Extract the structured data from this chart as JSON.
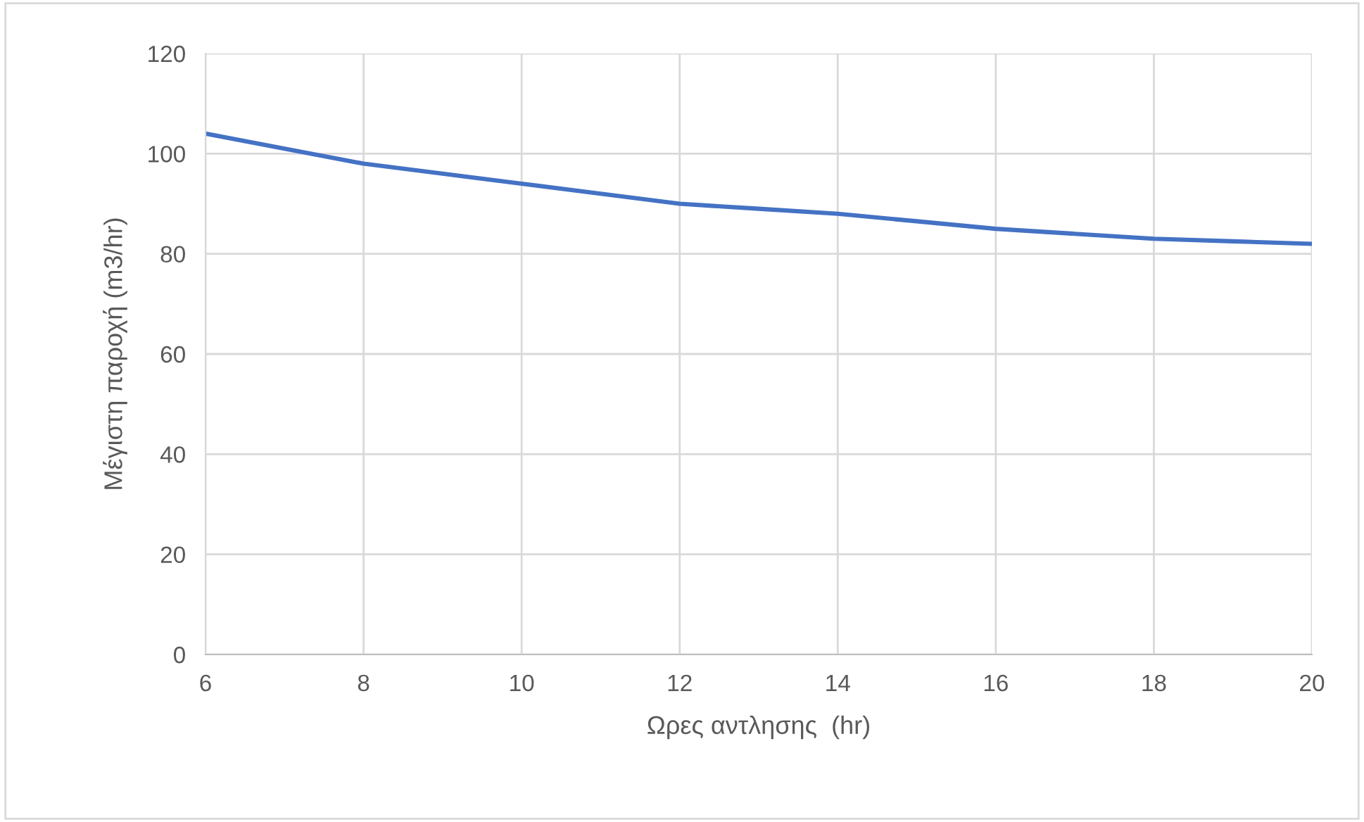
{
  "chart_data": {
    "type": "line",
    "xlabel": "Ωρες αντλησης  (hr)",
    "ylabel": "Μέγιστη παροχή (m3/hr)",
    "x": [
      6,
      7,
      8,
      9,
      10,
      11,
      12,
      13,
      14,
      15,
      16,
      17,
      18,
      19,
      20
    ],
    "series": [
      {
        "color": "#4472c4",
        "values": [
          104,
          101,
          98,
          96,
          94,
          92,
          90,
          89,
          88,
          86.5,
          85,
          84,
          83,
          82.5,
          82
        ]
      }
    ],
    "xlim": [
      6,
      20
    ],
    "xticks": [
      6,
      8,
      10,
      12,
      14,
      16,
      18,
      20
    ],
    "ylim": [
      0,
      120
    ],
    "yticks": [
      0,
      20,
      40,
      60,
      80,
      100,
      120
    ],
    "grid": true,
    "legend": false,
    "marker": "none",
    "line_style": "solid"
  }
}
